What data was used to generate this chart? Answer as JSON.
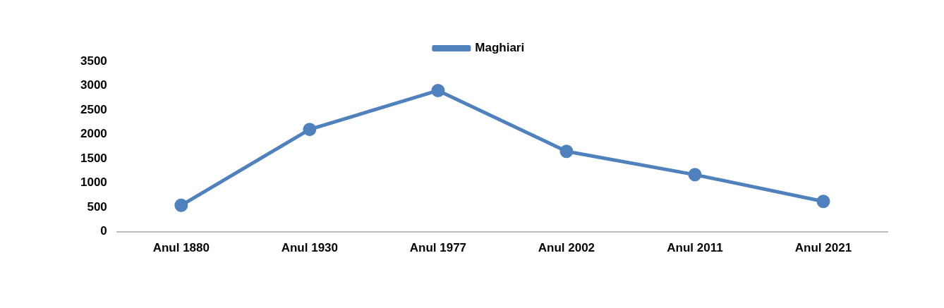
{
  "chart_data": {
    "type": "line",
    "categories": [
      "Anul 1880",
      "Anul 1930",
      "Anul 1977",
      "Anul 2002",
      "Anul 2011",
      "Anul 2021"
    ],
    "series": [
      {
        "name": "Maghiari",
        "color": "#4f81bd",
        "values": [
          540,
          2100,
          2900,
          1650,
          1170,
          620
        ]
      }
    ],
    "ylim": [
      0,
      3500
    ],
    "yticks": [
      0,
      500,
      1000,
      1500,
      2000,
      2500,
      3000,
      3500
    ],
    "grid": false,
    "legend": "top",
    "marker": "circle",
    "line_style": "solid"
  }
}
